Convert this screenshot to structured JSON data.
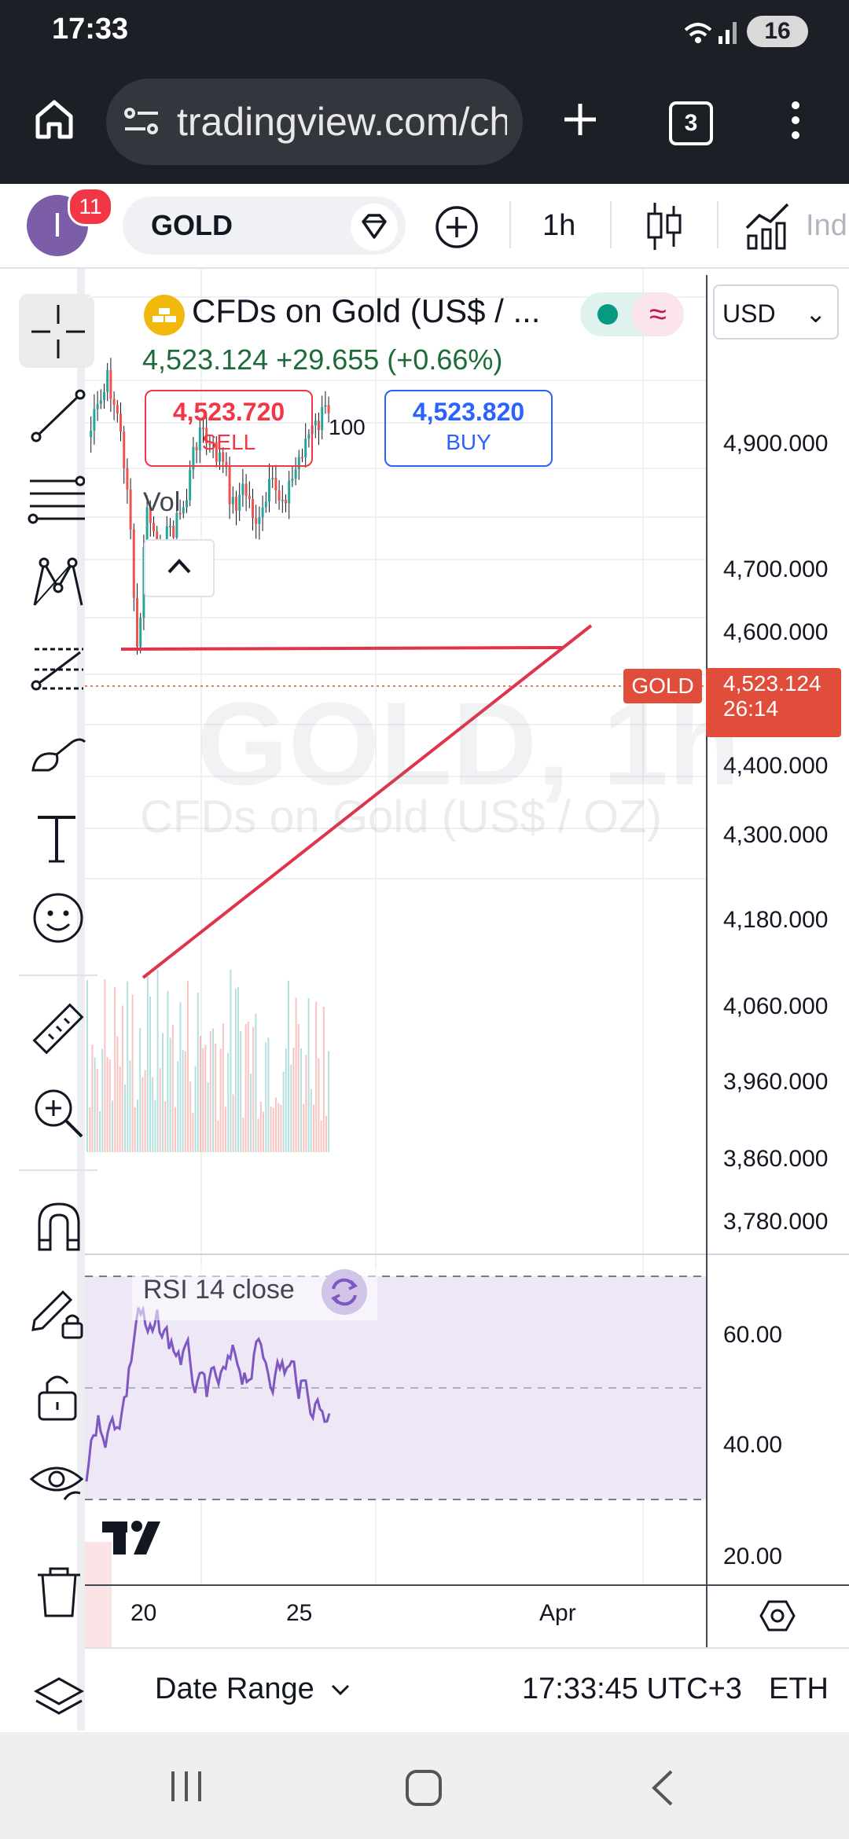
{
  "status_bar": {
    "time": "17:33",
    "battery": "16"
  },
  "browser": {
    "url": "tradingview.com/ch",
    "tab_count": "3"
  },
  "toolbar": {
    "avatar_letter": "I",
    "notifications": "11",
    "symbol": "GOLD",
    "interval": "1h",
    "indicators_label": "Ind"
  },
  "legend": {
    "title": "CFDs on Gold (US$ / ...",
    "price_line": "4,523.124  +29.655 (+0.66%)",
    "sell_price": "4,523.720",
    "sell_label": "SELL",
    "spread": "100",
    "buy_price": "4,523.820",
    "buy_label": "BUY",
    "volume_label": "Vol"
  },
  "currency": "USD",
  "watermark": {
    "symbol": "GOLD, 1h",
    "description": "CFDs on Gold (US$ / OZ)"
  },
  "price_axis": [
    "4,900.000",
    "4,700.000",
    "4,600.000",
    "4,400.000",
    "4,300.000",
    "4,180.000",
    "4,060.000",
    "3,960.000",
    "3,860.000",
    "3,780.000"
  ],
  "last_price": {
    "tag": "GOLD",
    "price": "4,523.124",
    "countdown": "26:14"
  },
  "rsi": {
    "label": "RSI 14 close",
    "axis": [
      "60.00",
      "40.00",
      "20.00"
    ]
  },
  "date_axis": [
    "20",
    "25",
    "Apr"
  ],
  "footer": {
    "date_range": "Date Range",
    "time": "17:33:45 UTC+3",
    "session": "ETH"
  },
  "colors": {
    "up": "#26a69a",
    "down": "#ef5350",
    "trendline": "#e0344b",
    "rsi_line": "#7e57c2",
    "rsi_band": "#ede7f6",
    "price_tag": "#e04e3b"
  }
}
